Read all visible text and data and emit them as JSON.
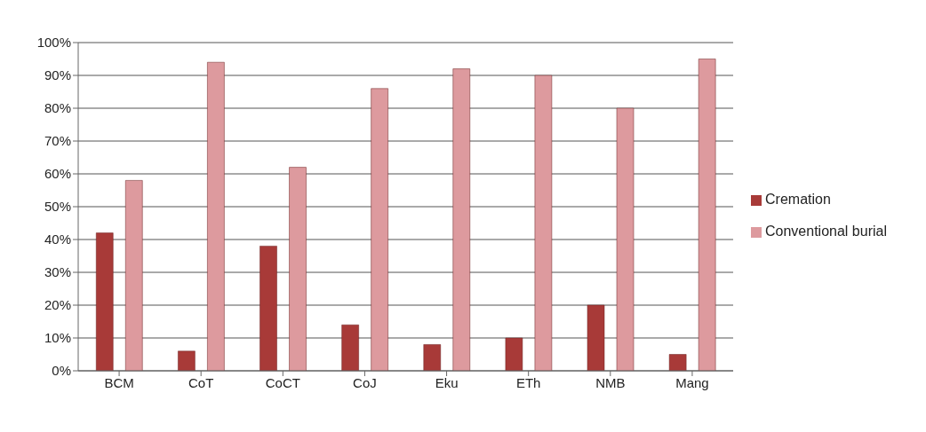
{
  "chart_data": {
    "type": "bar",
    "categories": [
      "BCM",
      "CoT",
      "CoCT",
      "CoJ",
      "Eku",
      "ETh",
      "NMB",
      "Mang"
    ],
    "series": [
      {
        "name": "Cremation",
        "color": "#a83a38",
        "values": [
          42,
          6,
          38,
          14,
          8,
          10,
          20,
          5
        ]
      },
      {
        "name": "Conventional burial",
        "color": "#dd9a9e",
        "values": [
          58,
          94,
          62,
          86,
          92,
          90,
          80,
          95
        ]
      }
    ],
    "ylim": [
      0,
      100
    ],
    "yticks": [
      {
        "value": 0,
        "label": "0%"
      },
      {
        "value": 10,
        "label": "10%"
      },
      {
        "value": 20,
        "label": "20%"
      },
      {
        "value": 30,
        "label": "30%"
      },
      {
        "value": 40,
        "label": "40%"
      },
      {
        "value": 50,
        "label": "50%"
      },
      {
        "value": 60,
        "label": "60%"
      },
      {
        "value": 70,
        "label": "70%"
      },
      {
        "value": 80,
        "label": "80%"
      },
      {
        "value": 90,
        "label": "90%"
      },
      {
        "value": 100,
        "label": "100%"
      }
    ],
    "grid": "y",
    "legend": "right"
  }
}
